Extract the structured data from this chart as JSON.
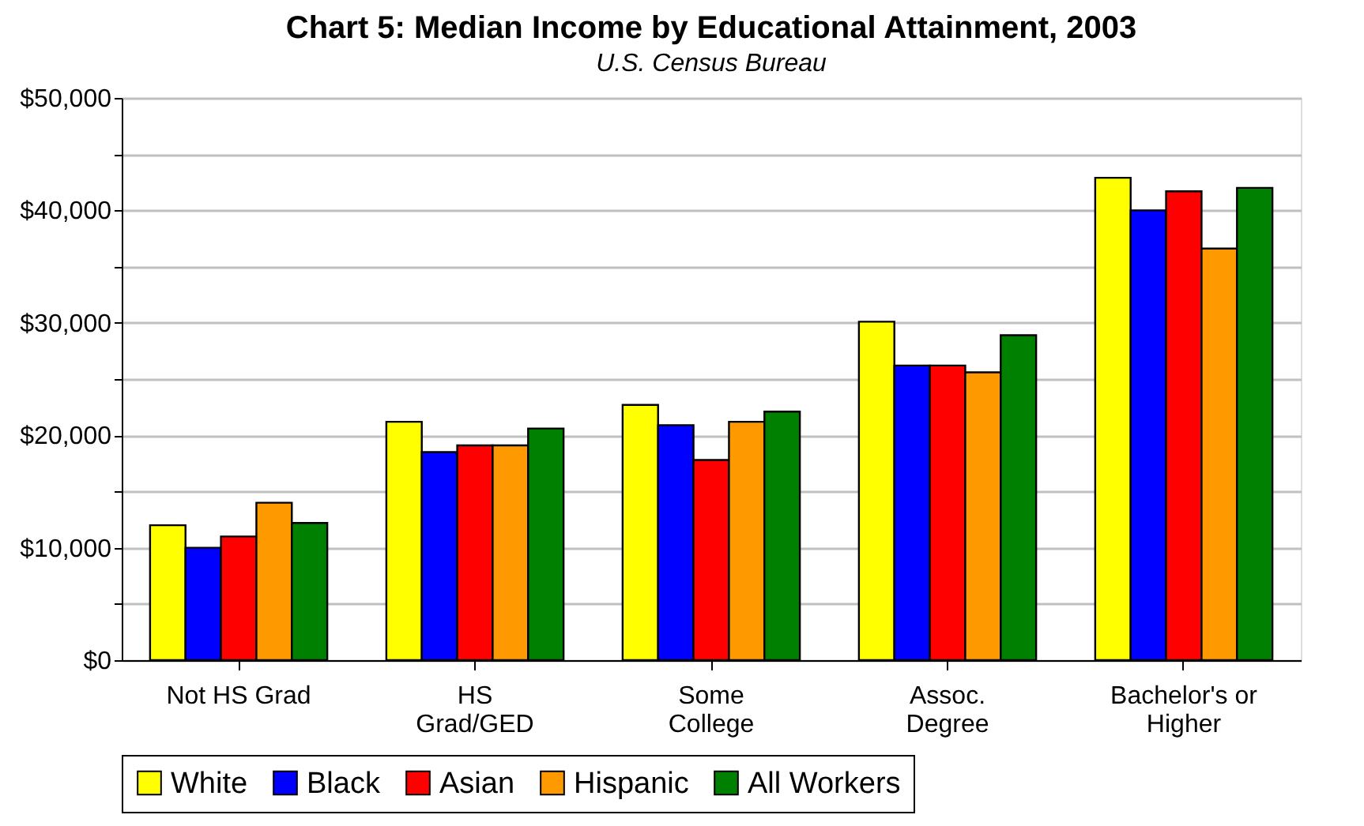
{
  "chart_data": {
    "type": "bar",
    "title": "Chart 5: Median Income by Educational Attainment, 2003",
    "subtitle": "U.S. Census Bureau",
    "categories": [
      "Not HS Grad",
      "HS Grad/GED",
      "Some College",
      "Assoc. Degree",
      "Bachelor's or Higher"
    ],
    "series": [
      {
        "name": "White",
        "color": "#ffff00",
        "values": [
          12000,
          21200,
          22700,
          30100,
          42900
        ]
      },
      {
        "name": "Black",
        "color": "#0000ff",
        "values": [
          10000,
          18500,
          20900,
          26200,
          40000
        ]
      },
      {
        "name": "Asian",
        "color": "#ff0000",
        "values": [
          11000,
          19100,
          17800,
          26200,
          41700
        ]
      },
      {
        "name": "Hispanic",
        "color": "#ff9900",
        "values": [
          14000,
          19100,
          21200,
          25600,
          36600
        ]
      },
      {
        "name": "All Workers",
        "color": "#008000",
        "values": [
          12200,
          20600,
          22100,
          28900,
          42000
        ]
      }
    ],
    "ylim": [
      0,
      50000
    ],
    "yticks": [
      {
        "value": 0,
        "label": "$0"
      },
      {
        "value": 5000,
        "label": null
      },
      {
        "value": 10000,
        "label": "$10,000"
      },
      {
        "value": 15000,
        "label": null
      },
      {
        "value": 20000,
        "label": "$20,000"
      },
      {
        "value": 25000,
        "label": null
      },
      {
        "value": 30000,
        "label": "$30,000"
      },
      {
        "value": 35000,
        "label": null
      },
      {
        "value": 40000,
        "label": "$40,000"
      },
      {
        "value": 45000,
        "label": null
      },
      {
        "value": 50000,
        "label": "$50,000"
      }
    ],
    "grid": "y",
    "legend": "bottom"
  }
}
